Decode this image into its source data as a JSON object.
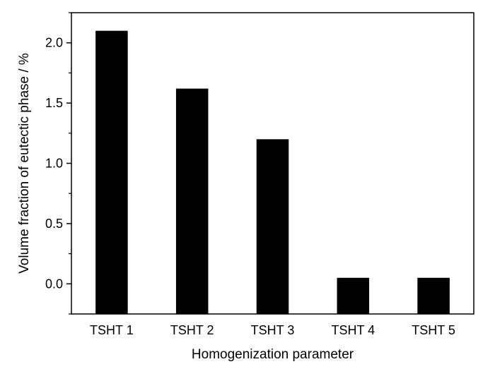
{
  "chart_data": {
    "type": "bar",
    "title": "",
    "xlabel": "Homogenization parameter",
    "ylabel": "Volume fraction of eutectic phase / %",
    "categories": [
      "TSHT 1",
      "TSHT 2",
      "TSHT 3",
      "TSHT 4",
      "TSHT 5"
    ],
    "values": [
      2.1,
      1.62,
      1.2,
      0.05,
      0.05
    ],
    "ylim": [
      -0.25,
      2.25
    ],
    "yticks": [
      0.0,
      0.5,
      1.0,
      1.5,
      2.0
    ],
    "ytick_labels": [
      "0.0",
      "0.5",
      "1.0",
      "1.5",
      "2.0"
    ],
    "grid": false,
    "bar_color": "#000000"
  }
}
